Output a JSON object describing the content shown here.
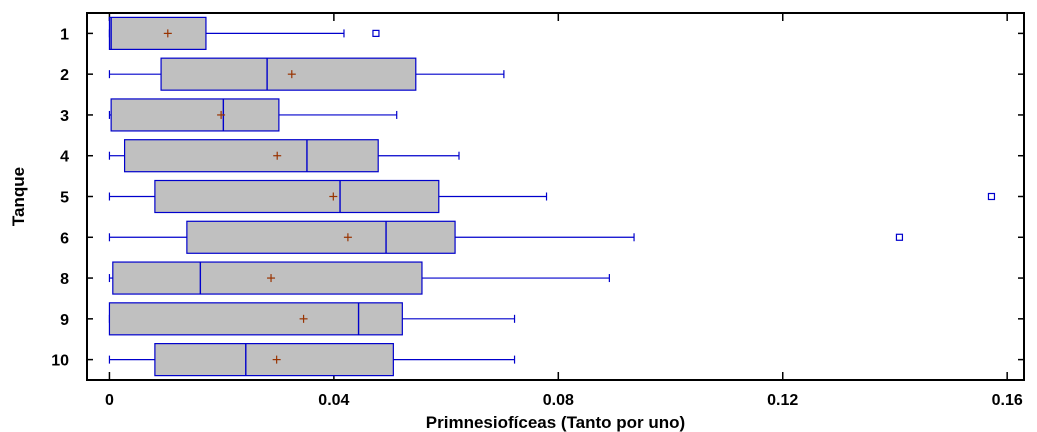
{
  "chart_data": {
    "type": "boxplot",
    "orientation": "horizontal",
    "xlabel": "Primnesiofíceas (Tanto por uno)",
    "ylabel": "Tanque",
    "xlim": [
      -0.004,
      0.163
    ],
    "xticks": [
      "0",
      "0.04",
      "0.08",
      "0.12",
      "0.16"
    ],
    "xtick_values": [
      0,
      0.04,
      0.08,
      0.12,
      0.16
    ],
    "grid": false,
    "colors": {
      "box_fill": "#c0c0c0",
      "box_stroke": "#0000cc",
      "mean_marker": "#993300",
      "frame": "#000000"
    },
    "categories": [
      "1",
      "2",
      "3",
      "4",
      "5",
      "6",
      "8",
      "9",
      "10"
    ],
    "boxes": [
      {
        "label": "1",
        "min": 0.0,
        "q1": 0.0,
        "median": 0.0003,
        "q3": 0.0172,
        "max": 0.0418,
        "mean": 0.0104,
        "outliers": [
          0.0475
        ]
      },
      {
        "label": "2",
        "min": 0.0,
        "q1": 0.0092,
        "median": 0.0281,
        "q3": 0.0546,
        "max": 0.0703,
        "mean": 0.0325,
        "outliers": []
      },
      {
        "label": "3",
        "min": 0.0,
        "q1": 0.0003,
        "median": 0.0203,
        "q3": 0.0302,
        "max": 0.0512,
        "mean": 0.0199,
        "outliers": []
      },
      {
        "label": "4",
        "min": 0.0,
        "q1": 0.0027,
        "median": 0.0352,
        "q3": 0.0479,
        "max": 0.0623,
        "mean": 0.0299,
        "outliers": []
      },
      {
        "label": "5",
        "min": 0.0,
        "q1": 0.0081,
        "median": 0.0411,
        "q3": 0.0587,
        "max": 0.0779,
        "mean": 0.0399,
        "outliers": [
          0.1572
        ]
      },
      {
        "label": "6",
        "min": 0.0,
        "q1": 0.0138,
        "median": 0.0493,
        "q3": 0.0616,
        "max": 0.0935,
        "mean": 0.0425,
        "outliers": [
          0.1408
        ]
      },
      {
        "label": "8",
        "min": 0.0,
        "q1": 0.0006,
        "median": 0.0162,
        "q3": 0.0557,
        "max": 0.0891,
        "mean": 0.0288,
        "outliers": []
      },
      {
        "label": "9",
        "min": 0.0,
        "q1": 0.0,
        "median": 0.0444,
        "q3": 0.0522,
        "max": 0.0722,
        "mean": 0.0346,
        "outliers": []
      },
      {
        "label": "10",
        "min": 0.0,
        "q1": 0.0081,
        "median": 0.0243,
        "q3": 0.0506,
        "max": 0.0722,
        "mean": 0.0298,
        "outliers": []
      }
    ]
  }
}
